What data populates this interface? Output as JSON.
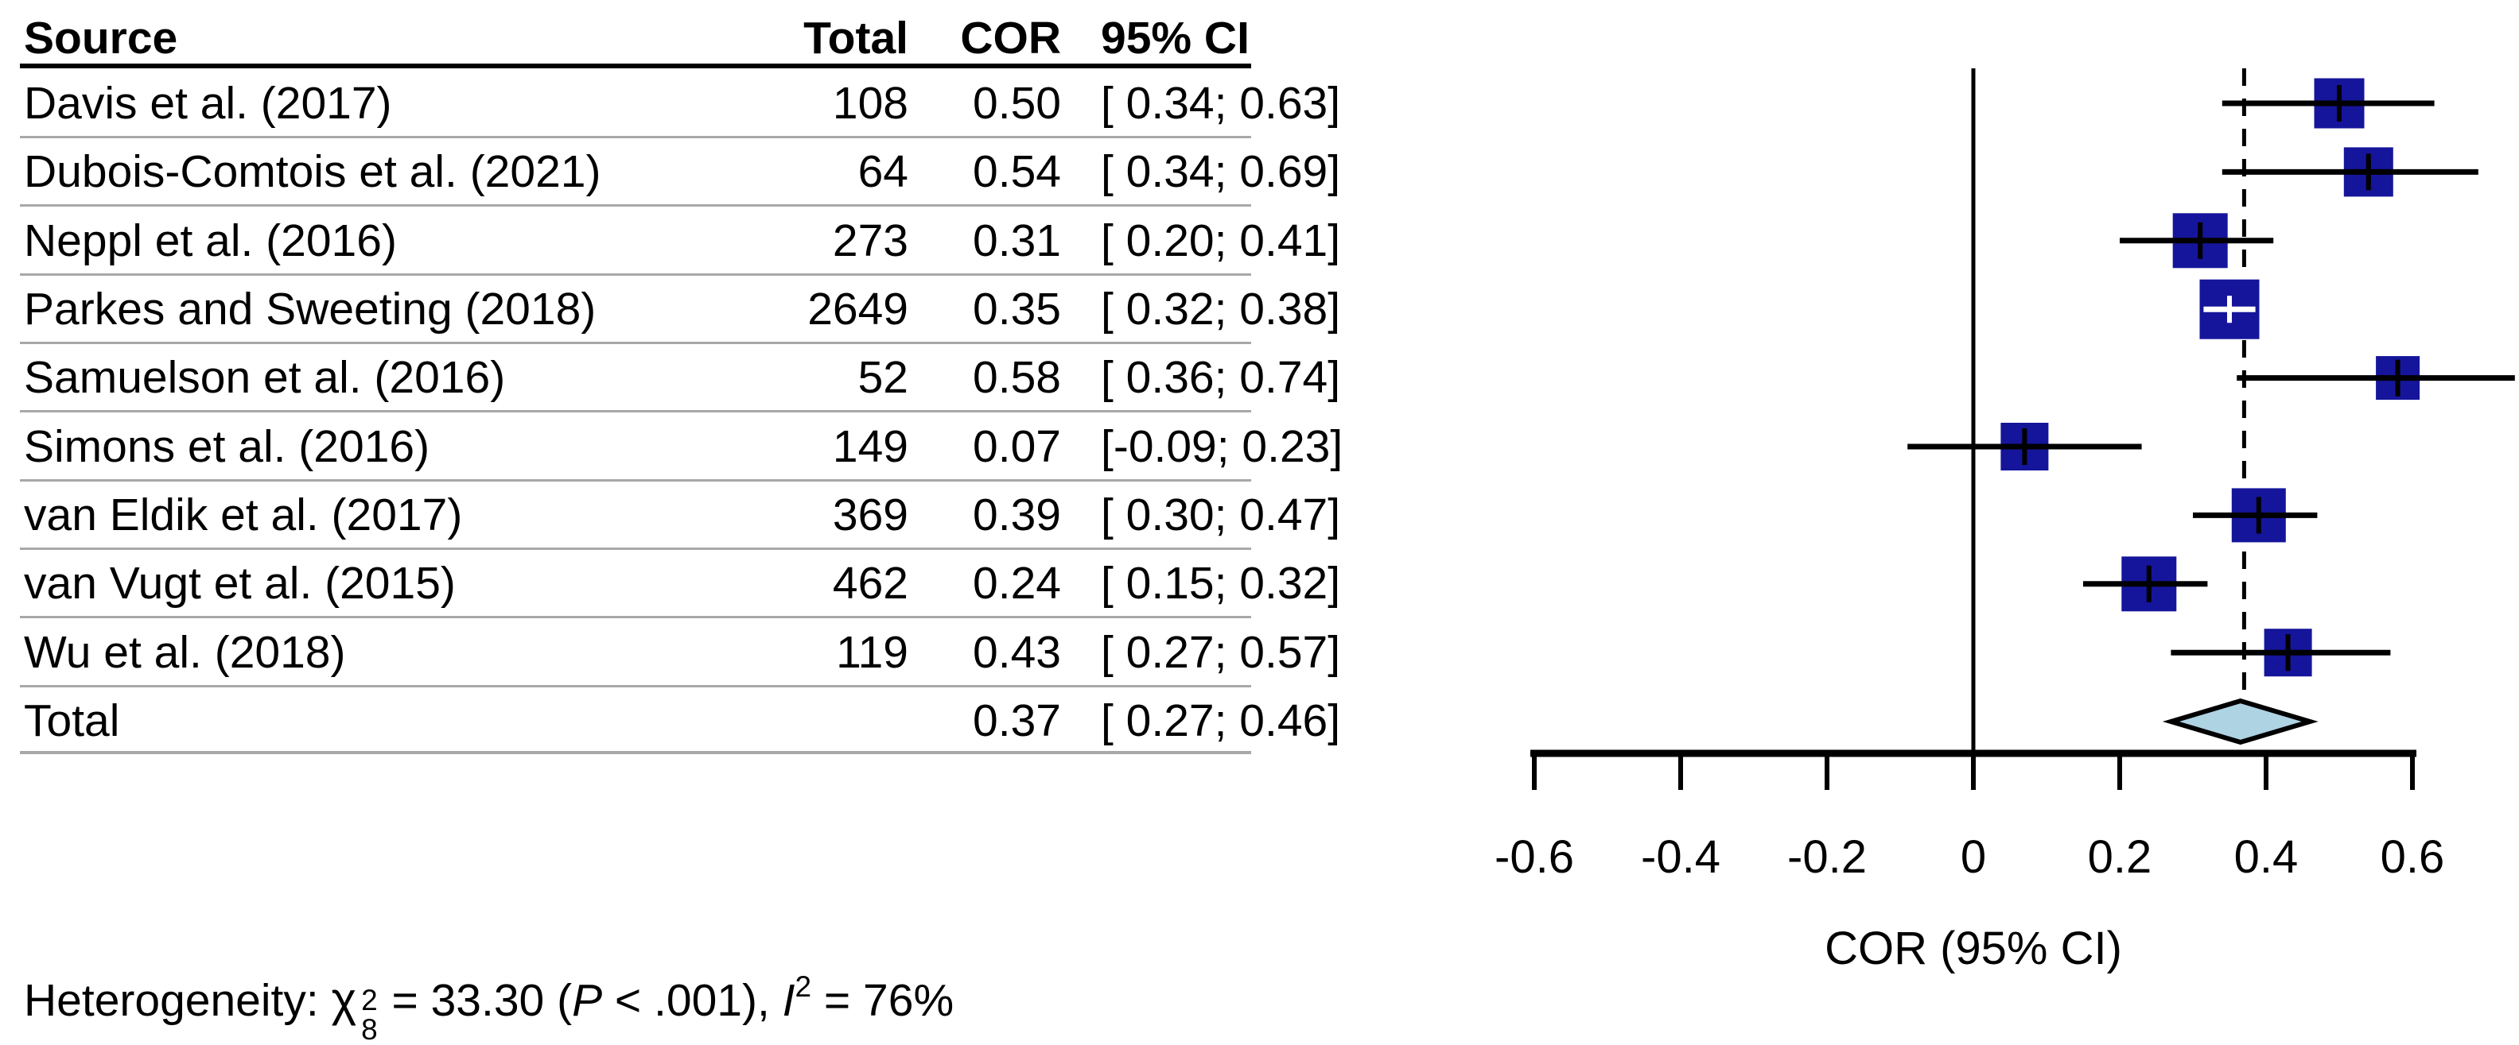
{
  "table": {
    "headers": {
      "source": "Source",
      "total": "Total",
      "cor": "COR",
      "ci": "95% CI"
    },
    "rows": [
      {
        "source": "Davis et al. (2017)",
        "total": "108",
        "cor": "0.50",
        "ci": "[ 0.34; 0.63]"
      },
      {
        "source": "Dubois-Comtois et al. (2021)",
        "total": "64",
        "cor": "0.54",
        "ci": "[ 0.34; 0.69]"
      },
      {
        "source": "Neppl et al. (2016)",
        "total": "273",
        "cor": "0.31",
        "ci": "[ 0.20; 0.41]"
      },
      {
        "source": "Parkes and Sweeting (2018)",
        "total": "2649",
        "cor": "0.35",
        "ci": "[ 0.32; 0.38]"
      },
      {
        "source": "Samuelson et al. (2016)",
        "total": "52",
        "cor": "0.58",
        "ci": "[ 0.36; 0.74]"
      },
      {
        "source": "Simons et al. (2016)",
        "total": "149",
        "cor": "0.07",
        "ci": "[-0.09; 0.23]"
      },
      {
        "source": "van Eldik et al. (2017)",
        "total": "369",
        "cor": "0.39",
        "ci": "[ 0.30; 0.47]"
      },
      {
        "source": "van Vugt et al. (2015)",
        "total": "462",
        "cor": "0.24",
        "ci": "[ 0.15; 0.32]"
      },
      {
        "source": "Wu et al. (2018)",
        "total": "119",
        "cor": "0.43",
        "ci": "[ 0.27; 0.57]"
      }
    ],
    "total_row": {
      "source": "Total",
      "total": "",
      "cor": "0.37",
      "ci": "[ 0.27; 0.46]"
    }
  },
  "footnote": {
    "label": "Heterogeneity: ",
    "chi": "χ",
    "chi_sup": "2",
    "chi_sub": "8",
    "mid": " = 33.30 (",
    "p": "P",
    "after_p": " < .001), ",
    "i": "I",
    "i_sup": "2",
    "tail": " = 76%"
  },
  "chart_data": {
    "type": "forest",
    "x_axis": {
      "label": "COR (95% CI)",
      "ticks": [
        -0.6,
        -0.4,
        -0.2,
        0,
        0.2,
        0.4,
        0.6
      ],
      "tick_labels": [
        "-0.6",
        "-0.4",
        "-0.2",
        "0",
        "0.2",
        "0.4",
        "0.6"
      ],
      "range": [
        -0.6,
        0.74
      ]
    },
    "zero_line_x": 0,
    "dashed_line_x": 0.37,
    "studies": [
      {
        "name": "Davis et al. (2017)",
        "n": 108,
        "cor": 0.5,
        "ci_low": 0.34,
        "ci_high": 0.63,
        "square_size": 63,
        "white_cross": false
      },
      {
        "name": "Dubois-Comtois et al. (2021)",
        "n": 64,
        "cor": 0.54,
        "ci_low": 0.34,
        "ci_high": 0.69,
        "square_size": 62,
        "white_cross": false
      },
      {
        "name": "Neppl et al. (2016)",
        "n": 273,
        "cor": 0.31,
        "ci_low": 0.2,
        "ci_high": 0.41,
        "square_size": 69,
        "white_cross": false
      },
      {
        "name": "Parkes and Sweeting (2018)",
        "n": 2649,
        "cor": 0.35,
        "ci_low": 0.32,
        "ci_high": 0.38,
        "square_size": 75,
        "white_cross": true
      },
      {
        "name": "Samuelson et al. (2016)",
        "n": 52,
        "cor": 0.58,
        "ci_low": 0.36,
        "ci_high": 0.74,
        "square_size": 55,
        "white_cross": false
      },
      {
        "name": "Simons et al. (2016)",
        "n": 149,
        "cor": 0.07,
        "ci_low": -0.09,
        "ci_high": 0.23,
        "square_size": 60,
        "white_cross": false
      },
      {
        "name": "van Eldik et al. (2017)",
        "n": 369,
        "cor": 0.39,
        "ci_low": 0.3,
        "ci_high": 0.47,
        "square_size": 68,
        "white_cross": false
      },
      {
        "name": "van Vugt et al. (2015)",
        "n": 462,
        "cor": 0.24,
        "ci_low": 0.15,
        "ci_high": 0.32,
        "square_size": 69,
        "white_cross": false
      },
      {
        "name": "Wu et al. (2018)",
        "n": 119,
        "cor": 0.43,
        "ci_low": 0.27,
        "ci_high": 0.57,
        "square_size": 60,
        "white_cross": false
      }
    ],
    "total": {
      "cor": 0.37,
      "ci_low": 0.27,
      "ci_high": 0.46
    },
    "heterogeneity": {
      "chi2": 33.3,
      "df": 8,
      "p": "< .001",
      "I2": "76%"
    },
    "colors": {
      "square": "#15159b",
      "diamond_fill": "#aed3e3",
      "line": "#000000"
    },
    "legend": "none",
    "grid": false
  }
}
